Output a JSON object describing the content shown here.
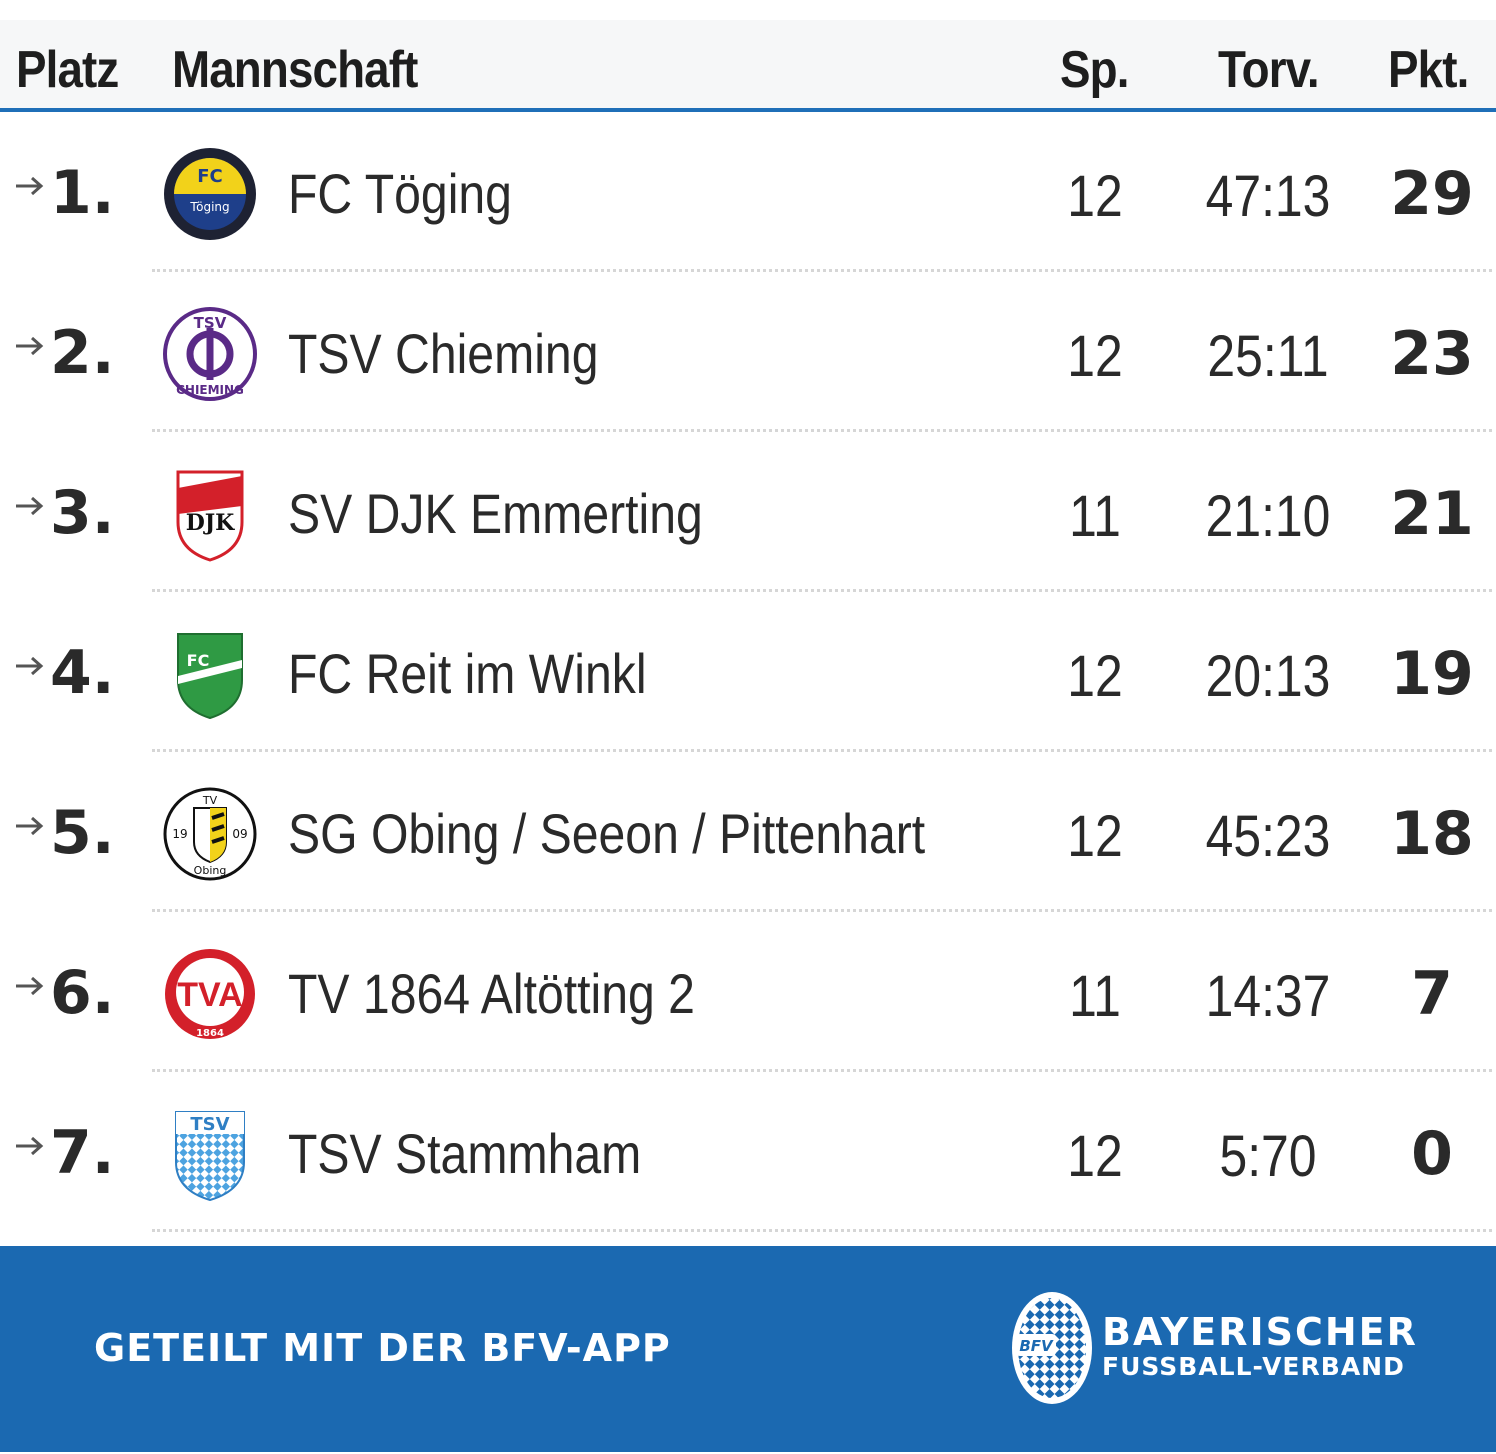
{
  "header": {
    "platz": "Platz",
    "mannschaft": "Mannschaft",
    "sp": "Sp.",
    "torv": "Torv.",
    "pkt": "Pkt."
  },
  "rows": [
    {
      "rank": "1.",
      "team": "FC Töging",
      "sp": "12",
      "torv": "47:13",
      "pkt": "29",
      "trend": "arrow-right-icon",
      "crest": "fc-toging-crest",
      "crest_text_top": "FC",
      "crest_text_mid": "Töging"
    },
    {
      "rank": "2.",
      "team": "TSV Chieming",
      "sp": "12",
      "torv": "25:11",
      "pkt": "23",
      "trend": "arrow-right-icon",
      "crest": "tsv-chieming-crest",
      "crest_text_top": "TSV",
      "crest_text_bottom": "CHIEMING"
    },
    {
      "rank": "3.",
      "team": "SV DJK Emmerting",
      "sp": "11",
      "torv": "21:10",
      "pkt": "21",
      "trend": "arrow-right-icon",
      "crest": "sv-djk-emmerting-crest",
      "crest_text_mid": "DJK"
    },
    {
      "rank": "4.",
      "team": "FC Reit im Winkl",
      "sp": "12",
      "torv": "20:13",
      "pkt": "19",
      "trend": "arrow-right-icon",
      "crest": "fc-reit-im-winkl-crest",
      "crest_text_top": "FC"
    },
    {
      "rank": "5.",
      "team": "SG Obing / Seeon / Pittenhart",
      "sp": "12",
      "torv": "45:23",
      "pkt": "18",
      "trend": "arrow-right-icon",
      "crest": "tv-obing-crest",
      "crest_text_top": "TV",
      "crest_text_left": "19",
      "crest_text_right": "09",
      "crest_text_bottom": "Obing"
    },
    {
      "rank": "6.",
      "team": "TV 1864 Altötting 2",
      "sp": "11",
      "torv": "14:37",
      "pkt": "7",
      "trend": "arrow-right-icon",
      "crest": "tv-altotting-crest",
      "crest_text_mid": "TVA",
      "crest_text_bottom": "1864"
    },
    {
      "rank": "7.",
      "team": "TSV Stammham",
      "sp": "12",
      "torv": "5:70",
      "pkt": "0",
      "trend": "arrow-right-icon",
      "crest": "tsv-stammham-crest",
      "crest_text_top": "TSV"
    }
  ],
  "footer": {
    "shared_label": "GETEILT MIT DER BFV-APP",
    "org_line1": "BAYERISCHER",
    "org_line2": "FUSSBALL-VERBAND",
    "logo_text": "BFV",
    "logo_icon": "bfv-logo-icon"
  },
  "colors": {
    "accent_blue": "#1b69b1",
    "header_line": "#1f6fb8",
    "text": "#2a2a2a"
  }
}
